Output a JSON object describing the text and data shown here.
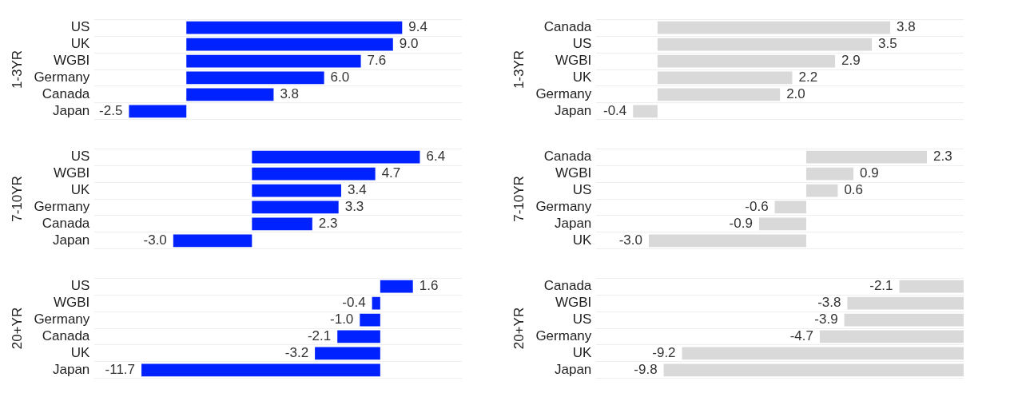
{
  "chart_data": [
    {
      "type": "bar",
      "orientation": "horizontal",
      "ylabel": "1-3YR",
      "categories": [
        "US",
        "UK",
        "WGBI",
        "Germany",
        "Canada",
        "Japan"
      ],
      "values": [
        9.4,
        9.0,
        7.6,
        6.0,
        3.8,
        -2.5
      ],
      "value_labels": [
        "9.4",
        "9.0",
        "7.6",
        "6.0",
        "3.8",
        "-2.5"
      ],
      "color": "#0022ff",
      "grid": "y",
      "tick_labels": "y"
    },
    {
      "type": "bar",
      "orientation": "horizontal",
      "ylabel": "1-3YR",
      "categories": [
        "Canada",
        "US",
        "WGBI",
        "UK",
        "Germany",
        "Japan"
      ],
      "values": [
        3.8,
        3.5,
        2.9,
        2.2,
        2.0,
        -0.4
      ],
      "value_labels": [
        "3.8",
        "3.5",
        "2.9",
        "2.2",
        "2.0",
        "-0.4"
      ],
      "color": "#d9d9d9",
      "grid": "y",
      "tick_labels": "y"
    },
    {
      "type": "bar",
      "orientation": "horizontal",
      "ylabel": "7-10YR",
      "categories": [
        "US",
        "WGBI",
        "UK",
        "Germany",
        "Canada",
        "Japan"
      ],
      "values": [
        6.4,
        4.7,
        3.4,
        3.3,
        2.3,
        -3.0
      ],
      "value_labels": [
        "6.4",
        "4.7",
        "3.4",
        "3.3",
        "2.3",
        "-3.0"
      ],
      "color": "#0022ff",
      "grid": "y",
      "tick_labels": "y"
    },
    {
      "type": "bar",
      "orientation": "horizontal",
      "ylabel": "7-10YR",
      "categories": [
        "Canada",
        "WGBI",
        "US",
        "Germany",
        "Japan",
        "UK"
      ],
      "values": [
        2.3,
        0.9,
        0.6,
        -0.6,
        -0.9,
        -3.0
      ],
      "value_labels": [
        "2.3",
        "0.9",
        "0.6",
        "-0.6",
        "-0.9",
        "-3.0"
      ],
      "color": "#d9d9d9",
      "grid": "y",
      "tick_labels": "y"
    },
    {
      "type": "bar",
      "orientation": "horizontal",
      "ylabel": "20+YR",
      "categories": [
        "US",
        "WGBI",
        "Germany",
        "Canada",
        "UK",
        "Japan"
      ],
      "values": [
        1.6,
        -0.4,
        -1.0,
        -2.1,
        -3.2,
        -11.7
      ],
      "value_labels": [
        "1.6",
        "-0.4",
        "-1.0",
        "-2.1",
        "-3.2",
        "-11.7"
      ],
      "color": "#0022ff",
      "grid": "y",
      "tick_labels": "y"
    },
    {
      "type": "bar",
      "orientation": "horizontal",
      "ylabel": "20+YR",
      "categories": [
        "Canada",
        "WGBI",
        "US",
        "Germany",
        "UK",
        "Japan"
      ],
      "values": [
        -2.1,
        -3.8,
        -3.9,
        -4.7,
        -9.2,
        -9.8
      ],
      "value_labels": [
        "-2.1",
        "-3.8",
        "-3.9",
        "-4.7",
        "-9.2",
        "-9.8"
      ],
      "color": "#d9d9d9",
      "grid": "y",
      "tick_labels": "y"
    }
  ]
}
